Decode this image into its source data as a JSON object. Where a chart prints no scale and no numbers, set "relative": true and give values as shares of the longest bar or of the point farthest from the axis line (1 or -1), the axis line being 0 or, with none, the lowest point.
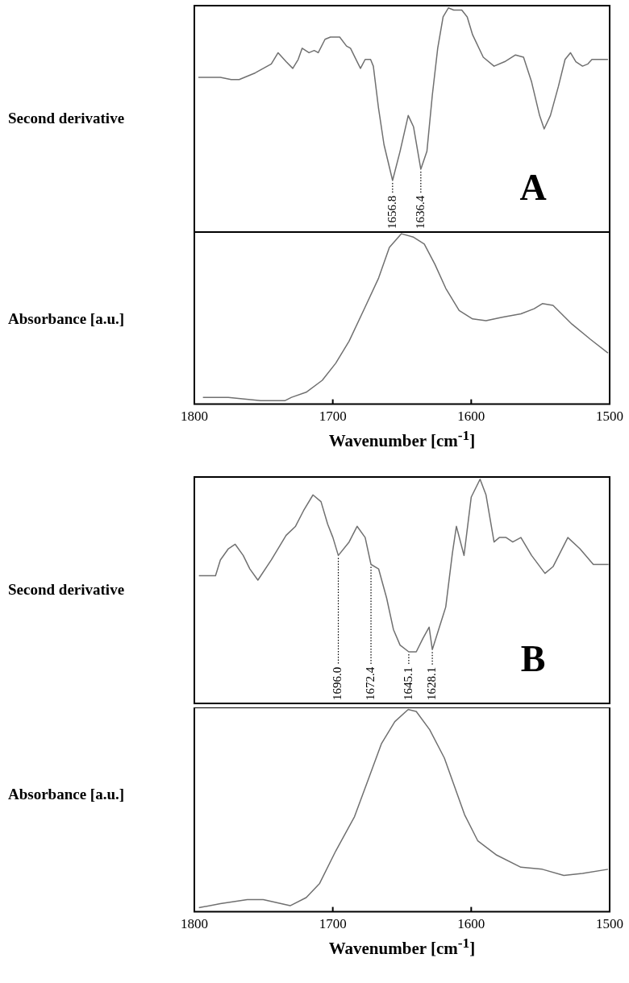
{
  "chart_data": [
    {
      "type": "line",
      "relative": true,
      "ylabel": "Second derivative",
      "xlim": [
        1800,
        1500
      ],
      "xticks": [
        1800,
        1700,
        1600,
        1500
      ],
      "tick_labels": false,
      "grid": false,
      "legend": false,
      "marker": "none",
      "x": [
        1797.1,
        1781.2,
        1773.4,
        1767.6,
        1756.0,
        1744.4,
        1739.5,
        1733.7,
        1728.9,
        1725.0,
        1722.1,
        1717.2,
        1713.4,
        1710.5,
        1705.6,
        1701.7,
        1695.0,
        1690.1,
        1687.2,
        1682.4,
        1680.0,
        1676.6,
        1672.7,
        1670.7,
        1666.9,
        1663.0,
        1656.8,
        1651.4,
        1645.5,
        1641.7,
        1636.4,
        1632.0,
        1628.1,
        1624.2,
        1620.3,
        1616.5,
        1612.6,
        1606.8,
        1602.9,
        1599.0,
        1591.3,
        1583.5,
        1575.8,
        1568.0,
        1562.2,
        1556.4,
        1550.6,
        1547.3,
        1542.8,
        1537.0,
        1532.2,
        1528.3,
        1524.4,
        1519.6,
        1515.7,
        1512.8,
        1501.2
      ],
      "series": [
        {
          "color": "#707070",
          "values": [
            0.69,
            0.69,
            0.68,
            0.68,
            0.71,
            0.75,
            0.8,
            0.76,
            0.73,
            0.77,
            0.82,
            0.8,
            0.81,
            0.8,
            0.86,
            0.87,
            0.87,
            0.83,
            0.82,
            0.76,
            0.73,
            0.77,
            0.77,
            0.74,
            0.55,
            0.39,
            0.23,
            0.36,
            0.52,
            0.47,
            0.28,
            0.36,
            0.61,
            0.82,
            0.96,
            1,
            0.99,
            0.99,
            0.96,
            0.88,
            0.78,
            0.74,
            0.76,
            0.79,
            0.78,
            0.67,
            0.52,
            0.46,
            0.52,
            0.65,
            0.77,
            0.8,
            0.76,
            0.74,
            0.75,
            0.77,
            0.77
          ]
        }
      ],
      "annotations": [
        "A",
        {
          "text": "1656.8",
          "x": 1656.8,
          "y": 0.23
        },
        {
          "text": "1636.4",
          "x": 1636.4,
          "y": 0.28
        }
      ]
    },
    {
      "type": "line",
      "relative": true,
      "ylabel": "Absorbance [a.u.]",
      "xlabel": "Wavenumber [cm$^{-1}$]",
      "xlim": [
        1800,
        1500
      ],
      "xticks": [
        1800,
        1700,
        1600,
        1500
      ],
      "tick_labels": "x",
      "grid": false,
      "legend": false,
      "marker": "none",
      "x": [
        1793.8,
        1775.4,
        1752.1,
        1734.7,
        1729.8,
        1719.2,
        1707.6,
        1697.9,
        1688.2,
        1676.6,
        1666.9,
        1659.1,
        1650.4,
        1641.7,
        1633.9,
        1626.2,
        1618.4,
        1608.7,
        1599.0,
        1589.3,
        1577.7,
        1564.1,
        1554.5,
        1548.6,
        1540.9,
        1527.3,
        1513.8,
        1501.2
      ],
      "series": [
        {
          "color": "#707070",
          "values": [
            0.04,
            0.04,
            0.02,
            0.02,
            0.04,
            0.07,
            0.14,
            0.24,
            0.37,
            0.57,
            0.74,
            0.92,
            1,
            0.98,
            0.94,
            0.82,
            0.68,
            0.55,
            0.5,
            0.49,
            0.51,
            0.53,
            0.56,
            0.59,
            0.58,
            0.47,
            0.38,
            0.3
          ]
        }
      ]
    },
    {
      "type": "line",
      "relative": true,
      "ylabel": "Second derivative",
      "xlim": [
        1800,
        1500
      ],
      "xticks": [
        1800,
        1700,
        1600,
        1500
      ],
      "tick_labels": false,
      "grid": false,
      "legend": false,
      "marker": "none",
      "x": [
        1796.7,
        1784.7,
        1781.2,
        1775.4,
        1770.5,
        1764.7,
        1759.9,
        1754.1,
        1744.4,
        1733.7,
        1726.9,
        1721.1,
        1714.3,
        1708.5,
        1703.7,
        1699.9,
        1696.0,
        1688.2,
        1682.4,
        1676.6,
        1672.4,
        1666.9,
        1661.1,
        1656.2,
        1651.4,
        1645.1,
        1639.7,
        1634.9,
        1630.4,
        1628.1,
        1618.4,
        1613.6,
        1610.7,
        1605.2,
        1600.0,
        1593.6,
        1589.3,
        1583.5,
        1579.7,
        1574.8,
        1570.0,
        1564.1,
        1556.4,
        1546.7,
        1540.9,
        1530.2,
        1521.5,
        1511.8,
        1500.8
      ],
      "series": [
        {
          "color": "#707070",
          "values": [
            0.57,
            0.57,
            0.64,
            0.69,
            0.71,
            0.66,
            0.6,
            0.55,
            0.64,
            0.75,
            0.79,
            0.86,
            0.93,
            0.9,
            0.8,
            0.74,
            0.66,
            0.72,
            0.79,
            0.74,
            0.62,
            0.6,
            0.47,
            0.33,
            0.26,
            0.23,
            0.23,
            0.29,
            0.34,
            0.24,
            0.43,
            0.67,
            0.79,
            0.66,
            0.92,
            1,
            0.93,
            0.72,
            0.74,
            0.74,
            0.72,
            0.74,
            0.66,
            0.58,
            0.61,
            0.74,
            0.69,
            0.62,
            0.62
          ]
        }
      ],
      "annotations": [
        "B",
        {
          "text": "1696.0",
          "x": 1696.0,
          "y": 0.66
        },
        {
          "text": "1672.4",
          "x": 1672.4,
          "y": 0.62
        },
        {
          "text": "1645.1",
          "x": 1645.1,
          "y": 0.23
        },
        {
          "text": "1628.1",
          "x": 1628.1,
          "y": 0.24
        }
      ]
    },
    {
      "type": "line",
      "relative": true,
      "ylabel": "Absorbance [a.u.]",
      "xlabel": "Wavenumber [cm$^{-1}$]",
      "xlim": [
        1800,
        1500
      ],
      "xticks": [
        1800,
        1700,
        1600,
        1500
      ],
      "tick_labels": "x",
      "grid": false,
      "legend": false,
      "marker": "none",
      "x": [
        1796.7,
        1781.2,
        1761.8,
        1750.2,
        1730.8,
        1719.2,
        1709.5,
        1697.9,
        1684.3,
        1674.6,
        1664.9,
        1655.2,
        1645.5,
        1639.7,
        1630.0,
        1619.4,
        1612.6,
        1604.8,
        1595.2,
        1581.6,
        1564.1,
        1548.6,
        1533.1,
        1519.6,
        1501.2
      ],
      "series": [
        {
          "color": "#707070",
          "values": [
            0.02,
            0.04,
            0.06,
            0.06,
            0.03,
            0.07,
            0.14,
            0.3,
            0.47,
            0.65,
            0.83,
            0.94,
            1,
            0.99,
            0.9,
            0.76,
            0.63,
            0.48,
            0.35,
            0.28,
            0.22,
            0.21,
            0.18,
            0.19,
            0.21
          ]
        }
      ]
    }
  ]
}
